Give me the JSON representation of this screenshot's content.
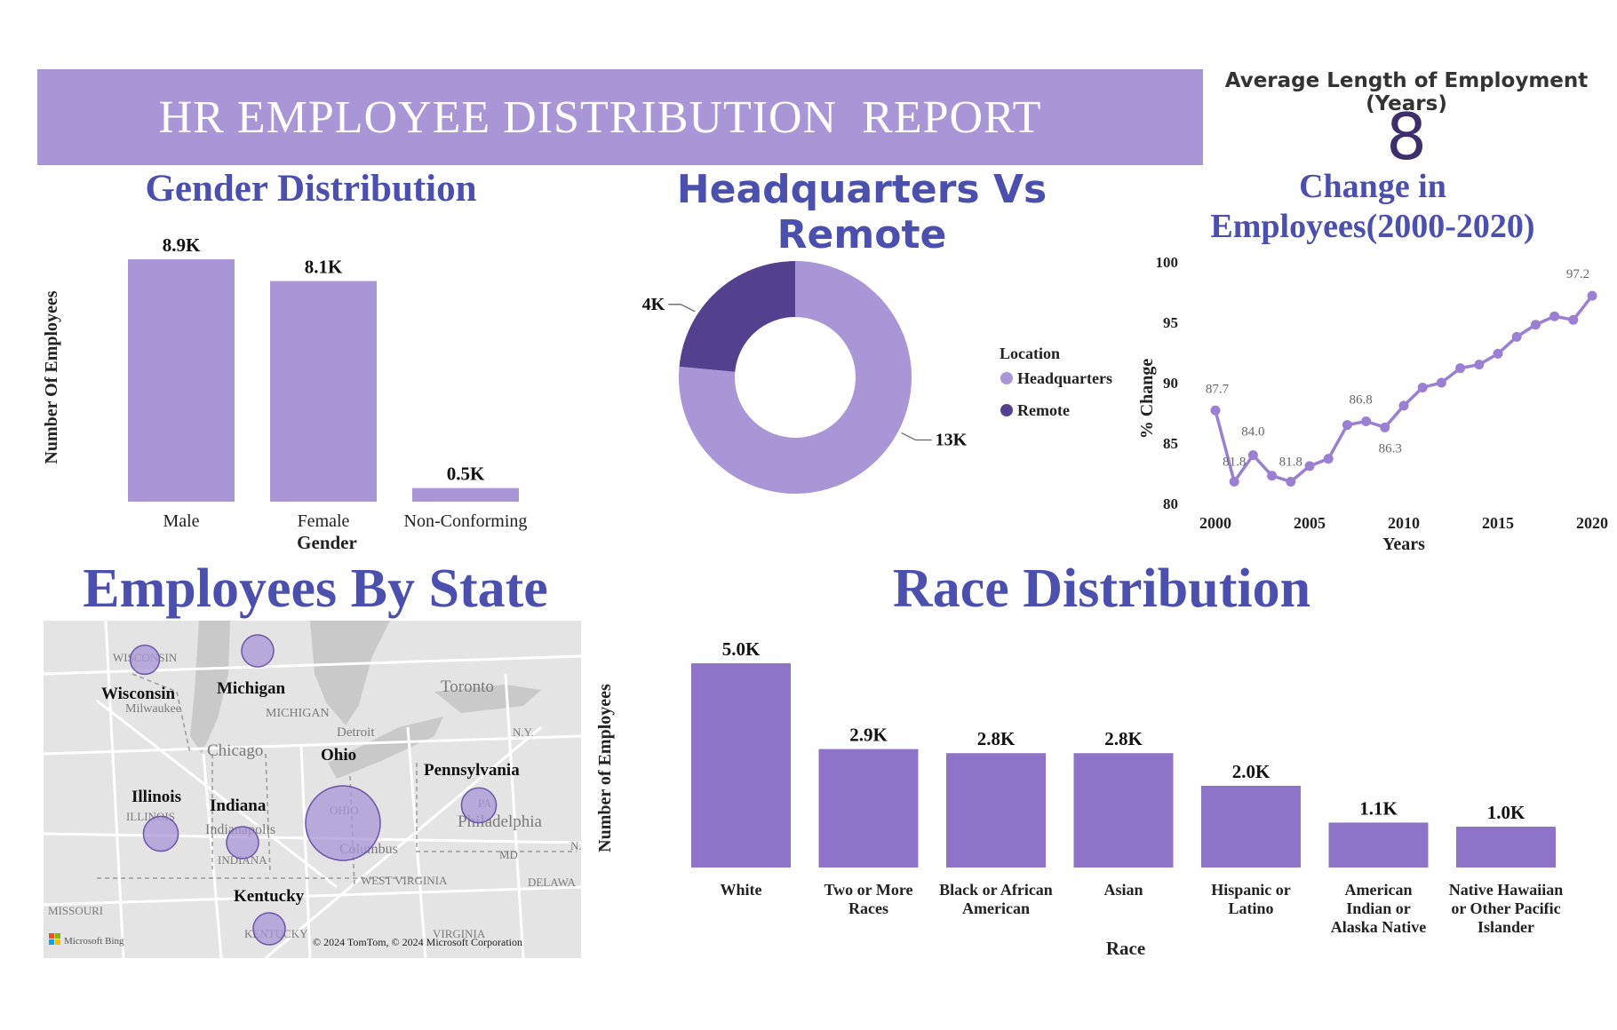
{
  "header": {
    "title": "HR EMPLOYEE DISTRIBUTION  REPORT",
    "kpi_label": "Average Length of Employment (Years)",
    "kpi_value": "8"
  },
  "colors": {
    "accent": "#a896d6",
    "bar": "#a896d6",
    "race_bar": "#8e74c8",
    "remote": "#53408e",
    "title_blue": "#4b4fae",
    "line": "#9a7fd2"
  },
  "chart_data": [
    {
      "type": "bar",
      "title": "Gender Distribution",
      "xlabel": "Gender",
      "ylabel": "Number Of Employees",
      "categories": [
        "Male",
        "Female",
        "Non-Conforming"
      ],
      "values": [
        8.9,
        8.1,
        0.5
      ],
      "data_labels": [
        "8.9K",
        "8.1K",
        "0.5K"
      ],
      "ylim": [
        0,
        8.9
      ]
    },
    {
      "type": "pie",
      "title": "Headquarters Vs Remote",
      "legend_title": "Location",
      "legend_position": "right",
      "categories": [
        "Headquarters",
        "Remote"
      ],
      "values": [
        13,
        4
      ],
      "data_labels": [
        "13K",
        "4K"
      ]
    },
    {
      "type": "line",
      "title": "Change in Employees(2000-2020)",
      "xlabel": "Years",
      "ylabel": "% Change",
      "x": [
        2000,
        2001,
        2002,
        2003,
        2004,
        2005,
        2006,
        2007,
        2008,
        2009,
        2010,
        2011,
        2012,
        2013,
        2014,
        2015,
        2016,
        2017,
        2018,
        2019,
        2020
      ],
      "values": [
        87.7,
        81.8,
        84.0,
        82.3,
        81.8,
        83.1,
        83.7,
        86.5,
        86.8,
        86.3,
        88.1,
        89.6,
        90.0,
        91.2,
        91.5,
        92.4,
        93.8,
        94.8,
        95.5,
        95.2,
        97.2
      ],
      "data_labels": [
        {
          "x": 2000,
          "text": "87.7"
        },
        {
          "x": 2001,
          "text": "81.8"
        },
        {
          "x": 2002,
          "text": "84.0"
        },
        {
          "x": 2004,
          "text": "81.8"
        },
        {
          "x": 2008,
          "text": "86.8"
        },
        {
          "x": 2009,
          "text": "86.3"
        },
        {
          "x": 2020,
          "text": "97.2"
        }
      ],
      "xticks": [
        "2000",
        "2005",
        "2010",
        "2015",
        "2020"
      ],
      "yticks": [
        "80",
        "85",
        "90",
        "95",
        "100"
      ],
      "ylim": [
        80,
        100
      ],
      "xlim": [
        2000,
        2020
      ]
    },
    {
      "type": "bar",
      "title": "Race Distribution",
      "xlabel": "Race",
      "ylabel": "Number of Employees",
      "categories": [
        [
          "White"
        ],
        [
          "Two or More",
          "Races"
        ],
        [
          "Black or African",
          "American"
        ],
        [
          "Asian"
        ],
        [
          "Hispanic or",
          "Latino"
        ],
        [
          "American",
          "Indian or",
          "Alaska Native"
        ],
        [
          "Native Hawaiian",
          "or Other Pacific",
          "Islander"
        ]
      ],
      "values": [
        5.0,
        2.9,
        2.8,
        2.8,
        2.0,
        1.1,
        1.0
      ],
      "data_labels": [
        "5.0K",
        "2.9K",
        "2.8K",
        "2.8K",
        "2.0K",
        "1.1K",
        "1.0K"
      ],
      "ylim": [
        0,
        5.0
      ]
    }
  ],
  "map": {
    "title": "Employees By State",
    "states": [
      {
        "name": "Wisconsin",
        "size": 0.2
      },
      {
        "name": "Michigan",
        "size": 0.25
      },
      {
        "name": "Ohio",
        "size": 1.0
      },
      {
        "name": "Pennsylvania",
        "size": 0.3
      },
      {
        "name": "Illinois",
        "size": 0.3
      },
      {
        "name": "Indiana",
        "size": 0.25
      },
      {
        "name": "Kentucky",
        "size": 0.25
      }
    ],
    "places": [
      "WISCONSIN",
      "Milwaukee",
      "MICHIGAN",
      "Toronto",
      "Detroit",
      "Chicago",
      "N.Y.",
      "ILLINOIS",
      "Indianapolis",
      "INDIANA",
      "OHIO",
      "Columbus",
      "Philadelphia",
      "PA",
      "MD",
      "N.",
      "WEST VIRGINIA",
      "DELAWA",
      "MISSOURI",
      "KENTUCKY",
      "VIRGINIA"
    ],
    "bing_label": "Microsoft Bing",
    "copyright": "© 2024 TomTom, © 2024 Microsoft Corporation"
  }
}
